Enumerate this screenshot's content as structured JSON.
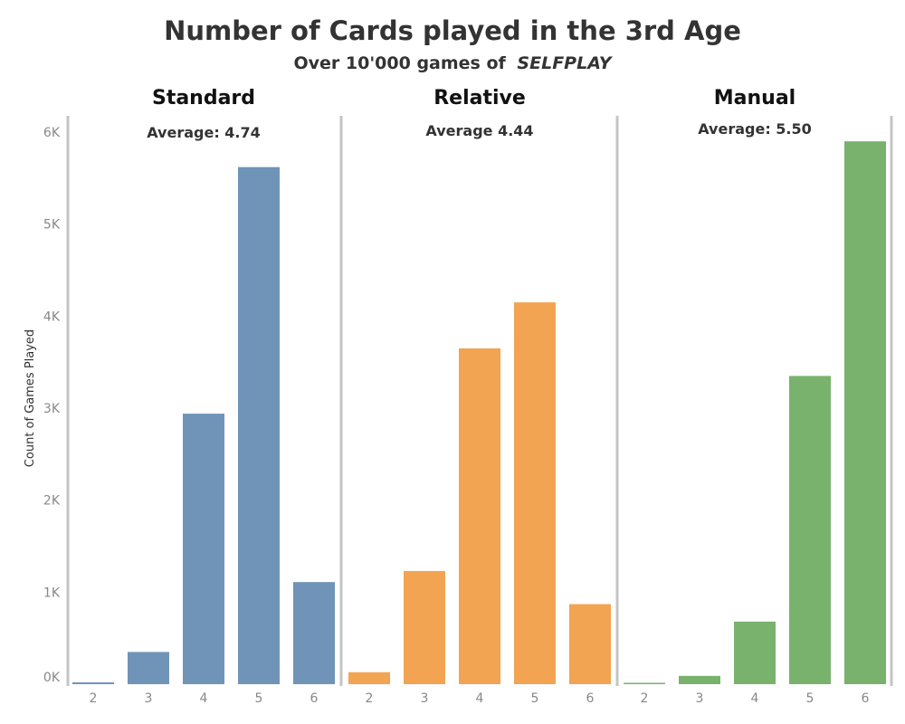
{
  "chart_data": {
    "type": "bar",
    "title": "Number of Cards played in the 3rd Age",
    "subtitle": "Over 10'000 games of",
    "subtitle_emphasis": "SELFPLAY",
    "ylabel": "Count of Games Played",
    "ylim": [
      0,
      6000
    ],
    "yticks": [
      0,
      1000,
      2000,
      3000,
      4000,
      5000,
      6000
    ],
    "ytick_labels": [
      "0K",
      "1K",
      "2K",
      "3K",
      "4K",
      "5K",
      "6K"
    ],
    "categories": [
      "2",
      "3",
      "4",
      "5",
      "6"
    ],
    "grid": false,
    "series": [
      {
        "name": "Standard",
        "average_label": "Average: 4.74",
        "color": "#6f94b8",
        "values": [
          20,
          350,
          2940,
          5620,
          1110
        ]
      },
      {
        "name": "Relative",
        "average_label": "Average 4.44",
        "color": "#f2a452",
        "values": [
          130,
          1230,
          3650,
          4150,
          870
        ]
      },
      {
        "name": "Manual",
        "average_label": "Average: 5.50",
        "color": "#78b26c",
        "values": [
          10,
          90,
          680,
          3350,
          5900
        ]
      }
    ]
  }
}
